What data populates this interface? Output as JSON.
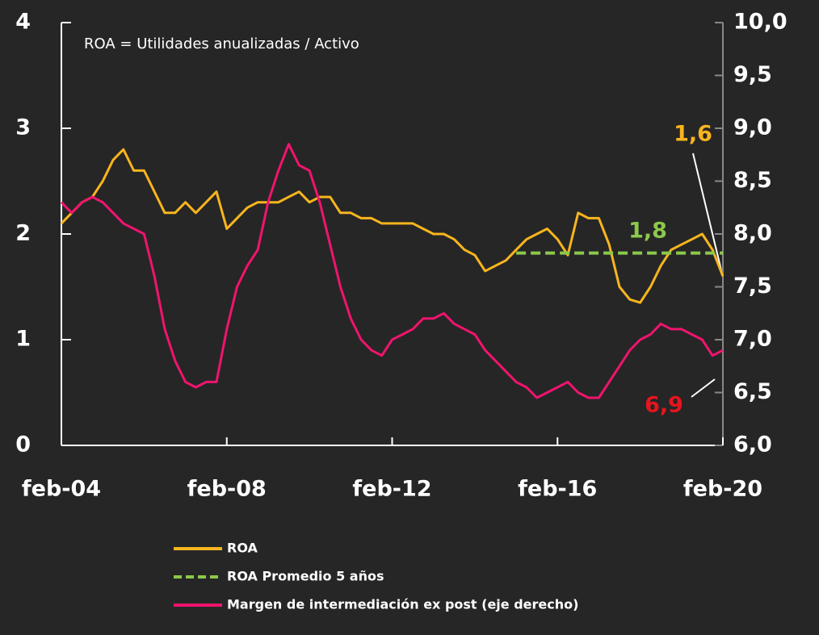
{
  "chart_data": {
    "type": "line",
    "note": "ROA = Utilidades anualizadas / Activo",
    "categories": [
      "feb-04",
      null,
      null,
      null,
      null,
      null,
      null,
      null,
      null,
      null,
      null,
      null,
      null,
      null,
      null,
      null,
      "feb-08",
      null,
      null,
      null,
      null,
      null,
      null,
      null,
      null,
      null,
      null,
      null,
      null,
      null,
      null,
      null,
      "feb-12",
      null,
      null,
      null,
      null,
      null,
      null,
      null,
      null,
      null,
      null,
      null,
      null,
      null,
      null,
      null,
      "feb-16",
      null,
      null,
      null,
      null,
      null,
      null,
      null,
      null,
      null,
      null,
      null,
      null,
      null,
      null,
      null,
      "feb-20"
    ],
    "series": [
      {
        "name": "ROA",
        "color": "#f7b51e",
        "axis": "y",
        "values": [
          2.1,
          2.2,
          2.3,
          2.35,
          2.5,
          2.7,
          2.8,
          2.6,
          2.6,
          2.4,
          2.2,
          2.2,
          2.3,
          2.2,
          2.3,
          2.4,
          2.05,
          2.15,
          2.25,
          2.3,
          2.3,
          2.3,
          2.35,
          2.4,
          2.3,
          2.35,
          2.35,
          2.2,
          2.2,
          2.15,
          2.15,
          2.1,
          2.1,
          2.1,
          2.1,
          2.05,
          2.0,
          2.0,
          1.95,
          1.85,
          1.8,
          1.65,
          1.7,
          1.75,
          1.85,
          1.95,
          2.0,
          2.05,
          1.95,
          1.8,
          2.2,
          2.15,
          2.15,
          1.9,
          1.5,
          1.38,
          1.35,
          1.5,
          1.7,
          1.85,
          1.9,
          1.95,
          2.0,
          1.85,
          1.6
        ]
      },
      {
        "name": "ROA Promedio 5 años",
        "color": "#8cc84b",
        "axis": "y",
        "dashed": true,
        "values": [
          null,
          null,
          null,
          null,
          null,
          null,
          null,
          null,
          null,
          null,
          null,
          null,
          null,
          null,
          null,
          null,
          null,
          null,
          null,
          null,
          null,
          null,
          null,
          null,
          null,
          null,
          null,
          null,
          null,
          null,
          null,
          null,
          null,
          null,
          null,
          null,
          null,
          null,
          null,
          null,
          null,
          null,
          null,
          null,
          1.82,
          1.82,
          1.82,
          1.82,
          1.82,
          1.82,
          1.82,
          1.82,
          1.82,
          1.82,
          1.82,
          1.82,
          1.82,
          1.82,
          1.82,
          1.82,
          1.82,
          1.82,
          1.82,
          1.82,
          1.82
        ]
      },
      {
        "name": "Margen de intermediación ex post (eje derecho)",
        "color": "#f0146e",
        "axis": "y2",
        "values": [
          8.3,
          8.2,
          8.3,
          8.35,
          8.3,
          8.2,
          8.1,
          8.05,
          8.0,
          7.6,
          7.1,
          6.8,
          6.6,
          6.55,
          6.6,
          6.6,
          7.1,
          7.5,
          7.7,
          7.85,
          8.3,
          8.6,
          8.85,
          8.65,
          8.6,
          8.3,
          7.9,
          7.5,
          7.2,
          7.0,
          6.9,
          6.85,
          7.0,
          7.05,
          7.1,
          7.2,
          7.2,
          7.25,
          7.15,
          7.1,
          7.05,
          6.9,
          6.8,
          6.7,
          6.6,
          6.55,
          6.45,
          6.5,
          6.55,
          6.6,
          6.5,
          6.45,
          6.45,
          6.6,
          6.75,
          6.9,
          7.0,
          7.05,
          7.15,
          7.1,
          7.1,
          7.05,
          7.0,
          6.85,
          6.9
        ]
      }
    ],
    "annotations": [
      {
        "text": "1,6",
        "color": "#f7b51e"
      },
      {
        "text": "1,8",
        "color": "#8cc84b"
      },
      {
        "text": "6,9",
        "color": "#e8141e"
      }
    ],
    "ylim": [
      0,
      4
    ],
    "yticks": [
      0,
      1,
      2,
      3,
      4
    ],
    "y2lim": [
      6,
      10
    ],
    "y2ticks": [
      {
        "value": 6,
        "label": "6,0"
      },
      {
        "value": 6.5,
        "label": "6,5"
      },
      {
        "value": 7,
        "label": "7,0"
      },
      {
        "value": 7.5,
        "label": "7,5"
      },
      {
        "value": 8,
        "label": "8,0"
      },
      {
        "value": 8.5,
        "label": "8,5"
      },
      {
        "value": 9,
        "label": "9,0"
      },
      {
        "value": 9.5,
        "label": "9,5"
      },
      {
        "value": 10,
        "label": "10,0"
      }
    ],
    "grid": false,
    "legend": "bottom"
  }
}
